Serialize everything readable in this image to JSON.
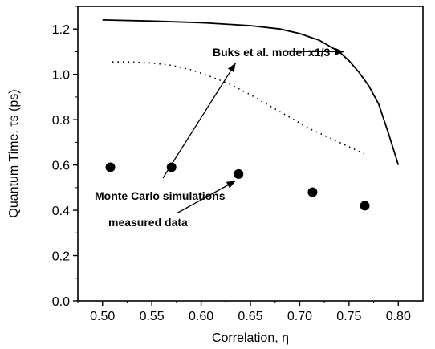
{
  "chart_data": {
    "type": "line",
    "xlabel": "Correlation, η",
    "ylabel": "Quantum Time, τs (ps)",
    "xlim": [
      0.475,
      0.825
    ],
    "ylim": [
      0.0,
      1.3
    ],
    "xticks": [
      0.5,
      0.55,
      0.6,
      0.65,
      0.7,
      0.75,
      0.8
    ],
    "xtick_labels": [
      "0.50",
      "0.55",
      "0.60",
      "0.65",
      "0.70",
      "0.75",
      "0.80"
    ],
    "yticks": [
      0.0,
      0.2,
      0.4,
      0.6,
      0.8,
      1.0,
      1.2
    ],
    "ytick_labels": [
      "0.0",
      "0.2",
      "0.4",
      "0.6",
      "0.8",
      "1.0",
      "1.2"
    ],
    "grid": false,
    "series": [
      {
        "name": "Buks et al. model x1/3",
        "style": "solid",
        "color": "#000000",
        "x": [
          0.5,
          0.55,
          0.6,
          0.65,
          0.68,
          0.7,
          0.72,
          0.74,
          0.75,
          0.76,
          0.77,
          0.78,
          0.79,
          0.8
        ],
        "y": [
          1.24,
          1.235,
          1.228,
          1.215,
          1.2,
          1.18,
          1.15,
          1.1,
          1.06,
          1.01,
          0.95,
          0.87,
          0.74,
          0.6
        ]
      },
      {
        "name": "Monte Carlo simulations",
        "style": "dotted",
        "color": "#000000",
        "x": [
          0.51,
          0.53,
          0.55,
          0.57,
          0.59,
          0.61,
          0.63,
          0.65,
          0.67,
          0.69,
          0.71,
          0.73,
          0.75,
          0.765
        ],
        "y": [
          1.055,
          1.055,
          1.05,
          1.04,
          1.02,
          0.99,
          0.955,
          0.91,
          0.86,
          0.81,
          0.76,
          0.72,
          0.68,
          0.65
        ]
      },
      {
        "name": "measured data",
        "style": "markers",
        "color": "#000000",
        "x": [
          0.508,
          0.57,
          0.638,
          0.713,
          0.766
        ],
        "y": [
          0.59,
          0.59,
          0.56,
          0.48,
          0.42
        ]
      }
    ],
    "annotations": [
      {
        "text": "Buks et al. model x1/3",
        "arrow_to": [
          0.745,
          1.1
        ]
      },
      {
        "text": "Monte Carlo simulations",
        "arrow_to": [
          0.635,
          1.05
        ]
      },
      {
        "text": "measured data",
        "arrow_to": [
          0.635,
          0.53
        ]
      }
    ]
  }
}
